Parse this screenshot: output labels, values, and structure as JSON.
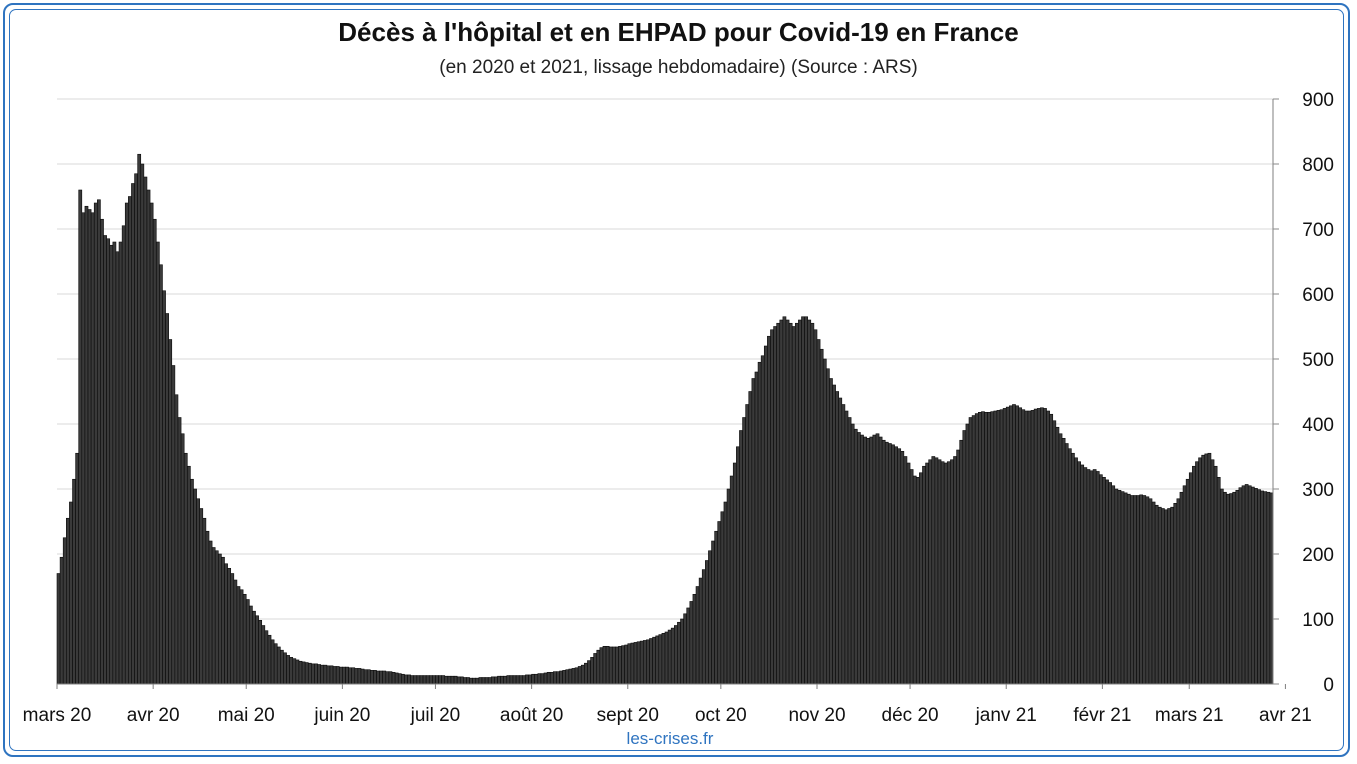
{
  "title": "Décès à l'hôpital et en EHPAD pour Covid-19 en France",
  "subtitle": "(en 2020 et 2021, lissage hebdomadaire) (Source : ARS)",
  "credit": "les-crises.fr",
  "colors": {
    "frame": "#2f74c0",
    "bar_fill": "#3a3a3a",
    "bar_stroke": "#0a0a0a",
    "grid": "#d9d9d9",
    "credit": "#2f74c0"
  },
  "chart_data": {
    "type": "bar",
    "title": "Décès à l'hôpital et en EHPAD pour Covid-19 en France",
    "subtitle": "(en 2020 et 2021, lissage hebdomadaire) (Source : ARS)",
    "xlabel": "",
    "ylabel": "",
    "ylim": [
      0,
      900
    ],
    "y_ticks": [
      0,
      100,
      200,
      300,
      400,
      500,
      600,
      700,
      800,
      900
    ],
    "y_axis_side": "right",
    "grid": true,
    "x_start": "2020-03-01",
    "month_labels": [
      "mars 20",
      "avr 20",
      "mai 20",
      "juin 20",
      "juil 20",
      "août 20",
      "sept 20",
      "oct 20",
      "nov 20",
      "déc 20",
      "janv 21",
      "févr 21",
      "mars 21",
      "avr 21"
    ],
    "month_starts": [
      "2020-03-01",
      "2020-04-01",
      "2020-05-01",
      "2020-06-01",
      "2020-07-01",
      "2020-08-01",
      "2020-09-01",
      "2020-10-01",
      "2020-11-01",
      "2020-12-01",
      "2021-01-01",
      "2021-02-01",
      "2021-03-01",
      "2021-04-01"
    ],
    "values": [
      170,
      195,
      225,
      255,
      280,
      315,
      355,
      760,
      725,
      735,
      730,
      725,
      740,
      745,
      715,
      690,
      685,
      675,
      680,
      665,
      680,
      705,
      740,
      750,
      770,
      785,
      815,
      800,
      780,
      760,
      740,
      715,
      680,
      645,
      605,
      570,
      530,
      490,
      445,
      410,
      385,
      355,
      335,
      315,
      300,
      285,
      270,
      255,
      235,
      220,
      210,
      205,
      200,
      195,
      185,
      178,
      170,
      160,
      150,
      145,
      138,
      130,
      120,
      112,
      105,
      98,
      90,
      82,
      75,
      68,
      62,
      57,
      52,
      48,
      44,
      41,
      39,
      37,
      35,
      34,
      33,
      32,
      31,
      31,
      30,
      29,
      29,
      28,
      28,
      27,
      27,
      26,
      26,
      26,
      25,
      25,
      24,
      24,
      23,
      22,
      22,
      21,
      21,
      20,
      20,
      20,
      19,
      19,
      18,
      17,
      16,
      15,
      14,
      14,
      13,
      13,
      13,
      13,
      13,
      13,
      13,
      13,
      13,
      13,
      13,
      12,
      12,
      12,
      12,
      11,
      11,
      10,
      10,
      9,
      9,
      9,
      10,
      10,
      10,
      10,
      11,
      11,
      12,
      12,
      12,
      13,
      13,
      13,
      13,
      13,
      13,
      14,
      14,
      15,
      15,
      16,
      16,
      17,
      18,
      18,
      19,
      19,
      20,
      21,
      22,
      23,
      24,
      25,
      27,
      29,
      32,
      36,
      41,
      47,
      52,
      56,
      58,
      58,
      57,
      57,
      57,
      58,
      59,
      60,
      62,
      63,
      64,
      65,
      66,
      67,
      68,
      70,
      72,
      74,
      76,
      78,
      80,
      83,
      86,
      90,
      95,
      100,
      108,
      117,
      127,
      138,
      150,
      163,
      176,
      190,
      205,
      220,
      235,
      250,
      265,
      280,
      300,
      320,
      340,
      365,
      390,
      410,
      430,
      450,
      470,
      480,
      495,
      505,
      520,
      535,
      545,
      550,
      555,
      560,
      565,
      560,
      555,
      550,
      555,
      560,
      565,
      565,
      560,
      555,
      545,
      530,
      515,
      500,
      485,
      470,
      460,
      450,
      440,
      430,
      420,
      410,
      400,
      392,
      387,
      383,
      380,
      378,
      380,
      383,
      385,
      380,
      375,
      372,
      370,
      368,
      365,
      362,
      358,
      350,
      340,
      330,
      320,
      318,
      325,
      335,
      340,
      345,
      350,
      348,
      345,
      342,
      340,
      342,
      345,
      350,
      360,
      375,
      390,
      400,
      410,
      413,
      416,
      418,
      419,
      418,
      418,
      419,
      420,
      421,
      422,
      424,
      426,
      428,
      430,
      428,
      425,
      422,
      420,
      420,
      421,
      423,
      424,
      425,
      424,
      420,
      415,
      405,
      395,
      385,
      378,
      370,
      362,
      355,
      348,
      342,
      337,
      333,
      330,
      328,
      330,
      327,
      322,
      318,
      314,
      310,
      305,
      300,
      298,
      296,
      294,
      292,
      290,
      290,
      290,
      291,
      290,
      288,
      285,
      280,
      275,
      272,
      270,
      268,
      270,
      272,
      278,
      285,
      295,
      305,
      315,
      325,
      335,
      342,
      348,
      352,
      354,
      355,
      345,
      335,
      318,
      300,
      295,
      292,
      293,
      295,
      298,
      302,
      305,
      307,
      305,
      303,
      301,
      299,
      297,
      296,
      295,
      294
    ],
    "data_labels": false,
    "legend": "none"
  }
}
